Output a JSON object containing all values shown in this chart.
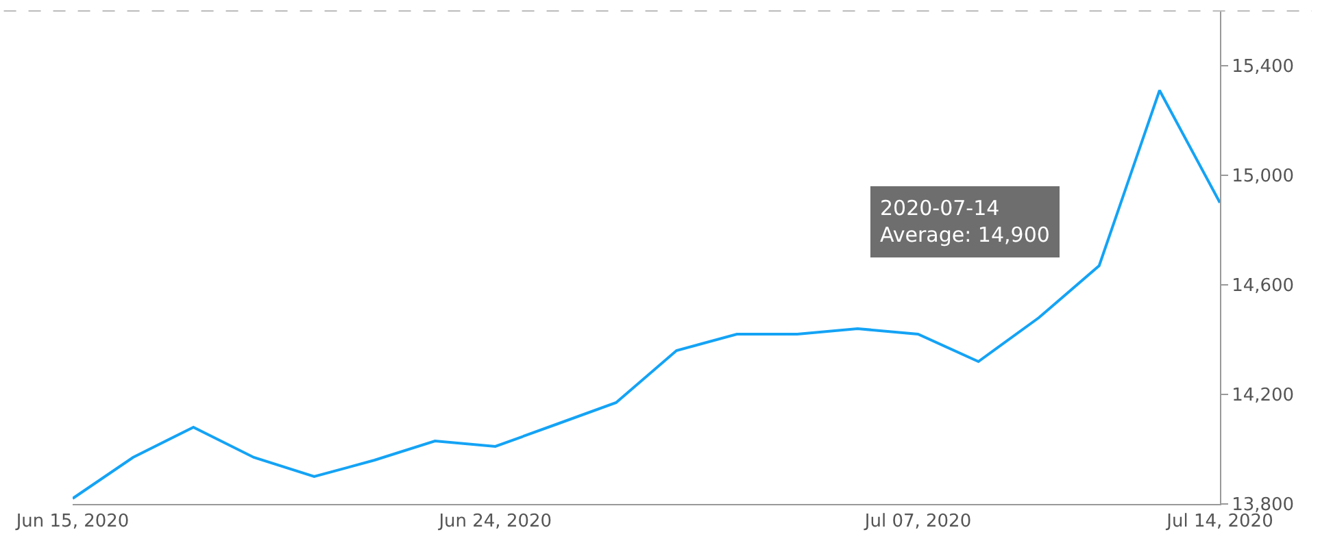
{
  "chart_data": {
    "type": "line",
    "categories": [
      "Jun 15, 2020",
      null,
      null,
      null,
      null,
      null,
      null,
      "Jun 24, 2020",
      null,
      null,
      null,
      null,
      null,
      null,
      "Jul 07, 2020",
      null,
      null,
      null,
      null,
      "Jul 14, 2020"
    ],
    "series": [
      {
        "color": "#14a3f5",
        "values": [
          13820,
          13970,
          14080,
          13970,
          13900,
          13960,
          14030,
          14010,
          14090,
          14170,
          14360,
          14420,
          14420,
          14440,
          14420,
          14320,
          14480,
          14670,
          15310,
          14900
        ]
      }
    ],
    "ylim": [
      13800,
      15600
    ],
    "yticks": [
      {
        "value": 13800,
        "label": "13,800"
      },
      {
        "value": 14200,
        "label": "14,200"
      },
      {
        "value": 14600,
        "label": "14,600"
      },
      {
        "value": 15000,
        "label": "15,000"
      },
      {
        "value": 15400,
        "label": "15,400"
      }
    ],
    "marker": "none",
    "line_style": "solid",
    "annotations": [
      "2020-07-14\nAverage: 14,900"
    ]
  }
}
